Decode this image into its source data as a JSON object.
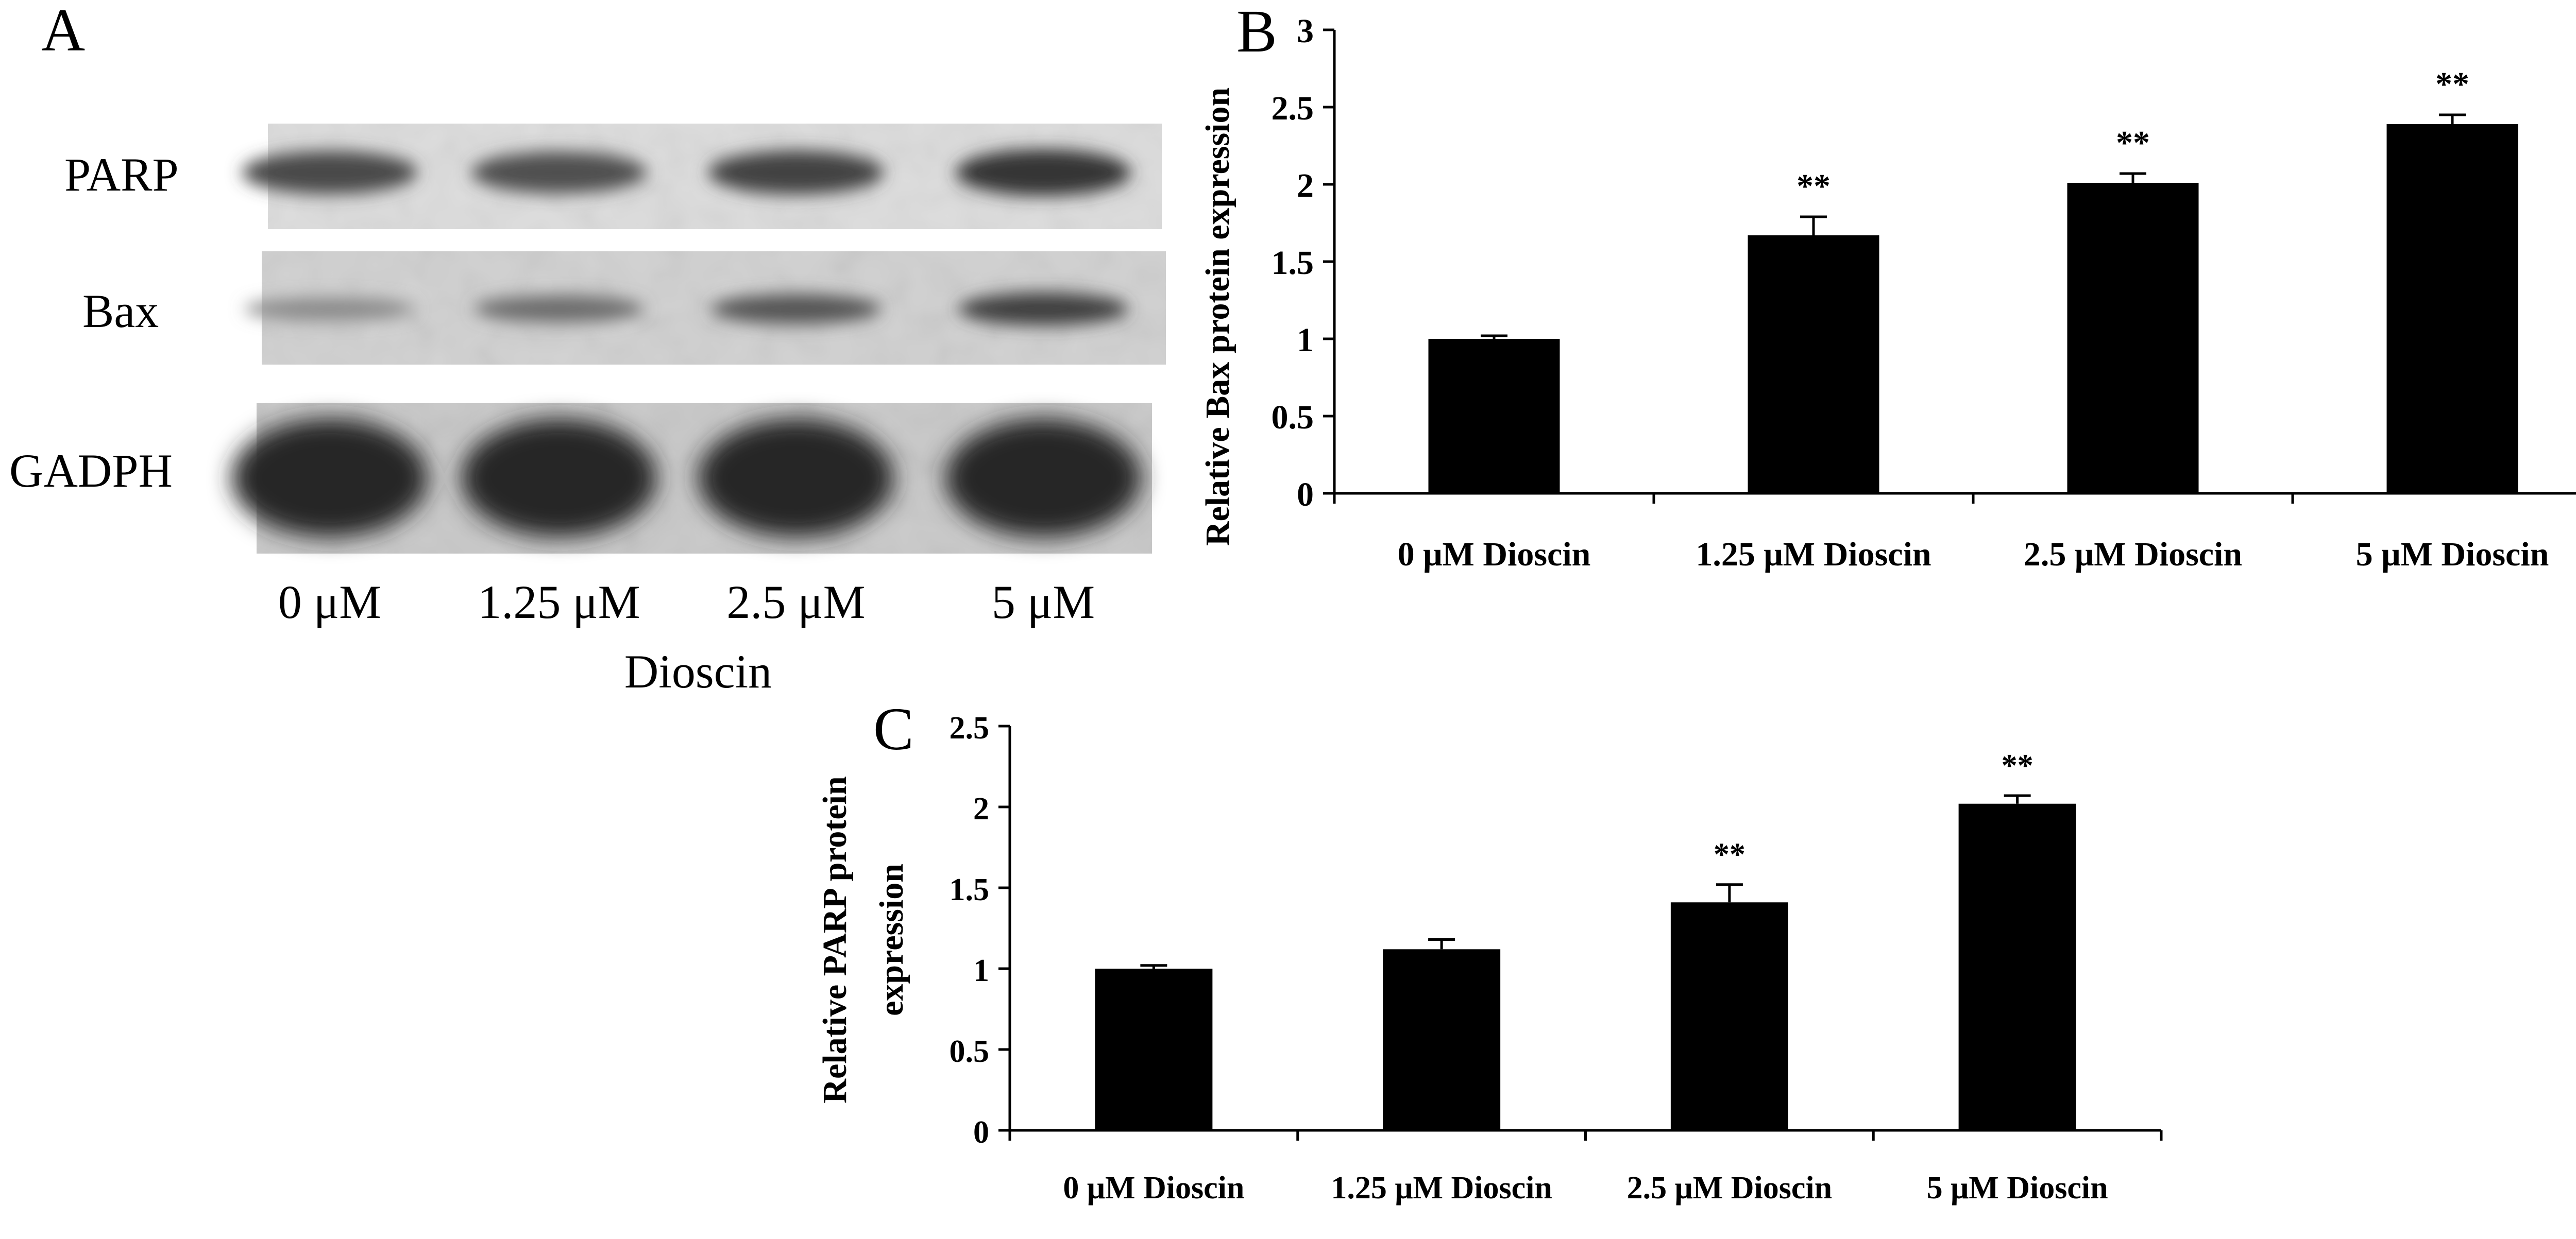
{
  "panels": {
    "a": {
      "letter": "A"
    },
    "b": {
      "letter": "B"
    },
    "c": {
      "letter": "C"
    }
  },
  "western_blot": {
    "row_labels": [
      "PARP",
      "Bax",
      "GADPH"
    ],
    "lane_labels": [
      "0 μM",
      "1.25 μM",
      "2.5 μM",
      "5 μM"
    ],
    "treatment_label": "Dioscin",
    "band_intensity": {
      "PARP": [
        0.78,
        0.74,
        0.82,
        0.92
      ],
      "Bax": [
        0.35,
        0.55,
        0.7,
        0.85
      ],
      "GADPH": [
        1.0,
        1.0,
        1.0,
        1.0
      ]
    }
  },
  "chart_data": [
    {
      "panel": "B",
      "type": "bar",
      "categories": [
        "0 μM Dioscin",
        "1.25 μM Dioscin",
        "2.5 μM Dioscin",
        "5 μM Dioscin"
      ],
      "values": [
        1.0,
        1.67,
        2.01,
        2.39
      ],
      "errors": [
        0.02,
        0.12,
        0.06,
        0.06
      ],
      "significance": [
        "",
        "**",
        "**",
        "**"
      ],
      "ylabel": "Relative Bax protein expression",
      "ylim": [
        0,
        3
      ],
      "yticks": [
        "0",
        "0.5",
        "1",
        "1.5",
        "2",
        "2.5",
        "3"
      ],
      "bar_color": "#000000",
      "grid": false
    },
    {
      "panel": "C",
      "type": "bar",
      "categories": [
        "0 μM Dioscin",
        "1.25 μM Dioscin",
        "2.5 μM Dioscin",
        "5 μM Dioscin"
      ],
      "values": [
        1.0,
        1.12,
        1.41,
        2.02
      ],
      "errors": [
        0.02,
        0.06,
        0.11,
        0.05
      ],
      "significance": [
        "",
        "",
        "**",
        "**"
      ],
      "ylabel_lines": [
        "Relative PARP protein",
        "expression"
      ],
      "ylim": [
        0,
        2.5
      ],
      "yticks": [
        "0",
        "0.5",
        "1",
        "1.5",
        "2",
        "2.5"
      ],
      "bar_color": "#000000",
      "grid": false
    }
  ]
}
